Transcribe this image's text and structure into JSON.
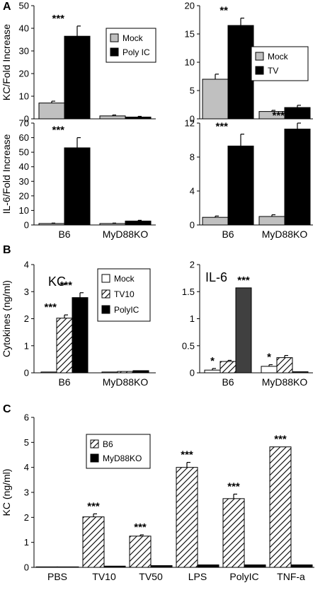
{
  "panels": {
    "A": "A",
    "B": "B",
    "C": "C"
  },
  "chart_data": [
    {
      "id": "A1",
      "type": "bar",
      "categories": [
        "B6",
        "MyD88KO"
      ],
      "ylim": [
        0,
        50
      ],
      "yticks": [
        0,
        10,
        20,
        30,
        40,
        50
      ],
      "ylabel": "KC/Fold Increase",
      "show_category_labels": false,
      "legend": {
        "position": "top-right"
      },
      "series": [
        {
          "name": "Mock",
          "values": [
            7.0,
            1.3
          ],
          "errors": [
            0.8,
            0.4
          ],
          "fill": "#c0c0c0",
          "pattern": "solid"
        },
        {
          "name": "Poly IC",
          "values": [
            36.5,
            0.8
          ],
          "errors": [
            4.5,
            0.3
          ],
          "fill": "#000000",
          "pattern": "solid"
        }
      ],
      "annotations": [
        {
          "category": 0,
          "series": 1,
          "text": "***"
        }
      ]
    },
    {
      "id": "A2",
      "type": "bar",
      "categories": [
        "B6",
        "MyD88KO"
      ],
      "ylim": [
        0,
        20
      ],
      "yticks": [
        0,
        5,
        10,
        15,
        20
      ],
      "ylabel": "",
      "show_category_labels": false,
      "legend": {
        "position": "right"
      },
      "series": [
        {
          "name": "Mock",
          "values": [
            7.0,
            1.3
          ],
          "errors": [
            0.9,
            0.2
          ],
          "fill": "#c0c0c0",
          "pattern": "solid"
        },
        {
          "name": "TV",
          "values": [
            16.5,
            2.0
          ],
          "errors": [
            1.3,
            0.4
          ],
          "fill": "#000000",
          "pattern": "solid"
        }
      ],
      "annotations": [
        {
          "category": 0,
          "series": 1,
          "text": "**"
        }
      ]
    },
    {
      "id": "A3",
      "type": "bar",
      "categories": [
        "B6",
        "MyD88KO"
      ],
      "ylim": [
        0,
        70
      ],
      "yticks": [
        0,
        10,
        20,
        30,
        40,
        50,
        60,
        70
      ],
      "ylabel": "IL-6/Fold Increase",
      "show_category_labels": true,
      "series": [
        {
          "name": "Mock",
          "values": [
            1.0,
            1.0
          ],
          "errors": [
            0.3,
            0.3
          ],
          "fill": "#c0c0c0",
          "pattern": "solid"
        },
        {
          "name": "Poly IC",
          "values": [
            53.0,
            2.7
          ],
          "errors": [
            7.0,
            0.5
          ],
          "fill": "#000000",
          "pattern": "solid"
        }
      ],
      "annotations": [
        {
          "category": 0,
          "series": 1,
          "text": "***"
        }
      ]
    },
    {
      "id": "A4",
      "type": "bar",
      "categories": [
        "B6",
        "MyD88KO"
      ],
      "ylim": [
        0,
        12
      ],
      "yticks": [
        0,
        4,
        8,
        12
      ],
      "ylabel": "",
      "show_category_labels": true,
      "series": [
        {
          "name": "Mock",
          "values": [
            0.9,
            1.0
          ],
          "errors": [
            0.15,
            0.2
          ],
          "fill": "#c0c0c0",
          "pattern": "solid"
        },
        {
          "name": "TV",
          "values": [
            9.3,
            11.3
          ],
          "errors": [
            1.4,
            0.7
          ],
          "fill": "#000000",
          "pattern": "solid"
        }
      ],
      "annotations": [
        {
          "category": 0,
          "series": 1,
          "text": "***"
        },
        {
          "category": 1,
          "series": 1,
          "text": "***"
        }
      ]
    },
    {
      "id": "B1",
      "type": "bar",
      "categories": [
        "B6",
        "MyD88KO"
      ],
      "ylim": [
        0,
        4
      ],
      "yticks": [
        0,
        1,
        2,
        3,
        4
      ],
      "ylabel": "Cytokines (ng/ml)",
      "inset_title": "KC",
      "show_category_labels": true,
      "legend": {
        "position": "top-right"
      },
      "series": [
        {
          "name": "Mock",
          "values": [
            0.03,
            0.03
          ],
          "errors": [
            0,
            0
          ],
          "fill": "#ffffff",
          "pattern": "solid"
        },
        {
          "name": "TV10",
          "values": [
            2.02,
            0.05
          ],
          "errors": [
            0.12,
            0
          ],
          "fill": "#ffffff",
          "pattern": "hatch"
        },
        {
          "name": "PolyIC",
          "values": [
            2.78,
            0.08
          ],
          "errors": [
            0.18,
            0
          ],
          "fill": "#000000",
          "pattern": "solid"
        }
      ],
      "annotations": [
        {
          "category": 0,
          "series": 1,
          "text": "***"
        },
        {
          "category": 0,
          "series": 2,
          "text": "***"
        }
      ]
    },
    {
      "id": "B2",
      "type": "bar",
      "categories": [
        "B6",
        "MyD88KO"
      ],
      "ylim": [
        0,
        2
      ],
      "yticks": [
        0,
        0.5,
        1,
        1.5,
        2
      ],
      "ylabel": "",
      "inset_title": "IL-6",
      "show_category_labels": true,
      "series": [
        {
          "name": "Mock",
          "values": [
            0.05,
            0.12
          ],
          "errors": [
            0.03,
            0.03
          ],
          "fill": "#ffffff",
          "pattern": "solid"
        },
        {
          "name": "TV10",
          "values": [
            0.21,
            0.28
          ],
          "errors": [
            0.02,
            0.04
          ],
          "fill": "#ffffff",
          "pattern": "hatch"
        },
        {
          "name": "PolyIC",
          "values": [
            1.57,
            0.02
          ],
          "errors": [
            0,
            0
          ],
          "fill": "#404040",
          "pattern": "solid"
        }
      ],
      "annotations": [
        {
          "category": 0,
          "series": 0,
          "text": "*"
        },
        {
          "category": 0,
          "series": 2,
          "text": "***"
        },
        {
          "category": 1,
          "series": 0,
          "text": "*"
        }
      ]
    },
    {
      "id": "C",
      "type": "bar",
      "categories": [
        "PBS",
        "TV10",
        "TV50",
        "LPS",
        "PolyIC",
        "TNF-a"
      ],
      "ylim": [
        0,
        6
      ],
      "yticks": [
        0,
        1,
        2,
        3,
        4,
        5,
        6
      ],
      "ylabel": "KC (ng/ml)",
      "show_category_labels": true,
      "legend": {
        "position": "top-left"
      },
      "series": [
        {
          "name": "B6",
          "values": [
            0.02,
            2.02,
            1.25,
            4.0,
            2.75,
            4.82
          ],
          "errors": [
            0,
            0.12,
            0.05,
            0.2,
            0.18,
            0
          ],
          "fill": "#ffffff",
          "pattern": "hatch"
        },
        {
          "name": "MyD88KO",
          "values": [
            0.02,
            0.05,
            0.07,
            0.1,
            0.1,
            0.1
          ],
          "errors": [
            0,
            0,
            0,
            0,
            0,
            0
          ],
          "fill": "#000000",
          "pattern": "solid"
        }
      ],
      "annotations": [
        {
          "category": 1,
          "series": 0,
          "text": "***"
        },
        {
          "category": 2,
          "series": 0,
          "text": "***"
        },
        {
          "category": 3,
          "series": 0,
          "text": "***"
        },
        {
          "category": 4,
          "series": 0,
          "text": "***"
        },
        {
          "category": 5,
          "series": 0,
          "text": "***"
        }
      ]
    }
  ]
}
